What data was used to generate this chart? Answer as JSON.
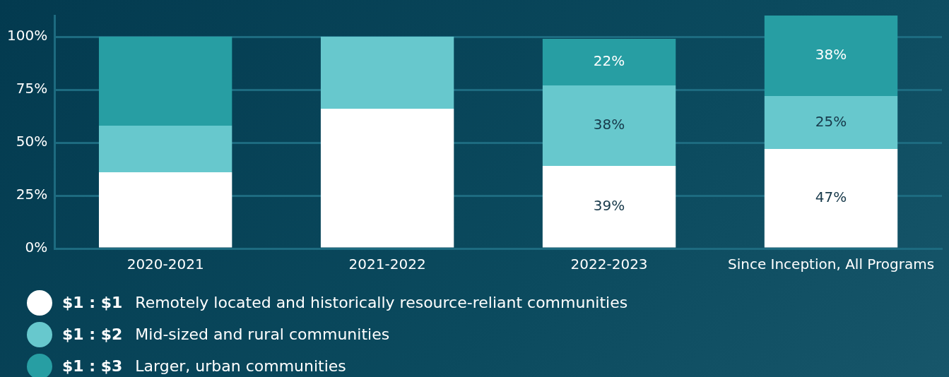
{
  "chart_data": {
    "type": "bar",
    "stacked": true,
    "categories": [
      "2020-2021",
      "2021-2022",
      "2022-2023",
      "Since Inception, All Programs"
    ],
    "series": [
      {
        "name": "$1 : $1  Remotely located and historically resource-reliant communities",
        "color": "#ffffff",
        "values": [
          36,
          66,
          39,
          47
        ],
        "value_labels": [
          null,
          null,
          "39%",
          "47%"
        ]
      },
      {
        "name": "$1 : $2  Mid-sized and rural communities",
        "color": "#67c8cd",
        "values": [
          22,
          34,
          38,
          25
        ],
        "value_labels": [
          null,
          null,
          "38%",
          "25%"
        ]
      },
      {
        "name": "$1 : $3  Larger, urban communities",
        "color": "#279ea3",
        "values": [
          42,
          null,
          22,
          38
        ],
        "value_labels": [
          null,
          null,
          "22%",
          "38%"
        ]
      }
    ],
    "ylim": [
      0,
      110
    ],
    "yticks": [
      {
        "value": 0,
        "label": "0%"
      },
      {
        "value": 25,
        "label": "25%"
      },
      {
        "value": 50,
        "label": "50%"
      },
      {
        "value": 75,
        "label": "75%"
      },
      {
        "value": 100,
        "label": "100%"
      }
    ],
    "grid": "y",
    "legend": "bottom"
  }
}
